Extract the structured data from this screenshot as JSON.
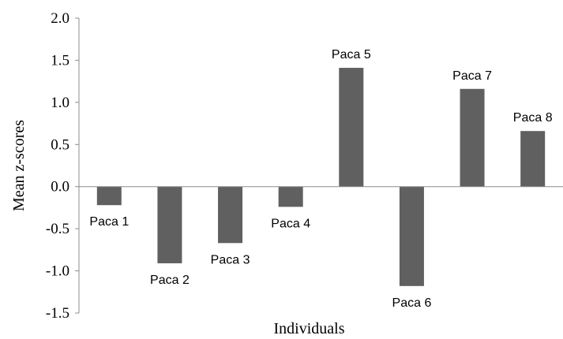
{
  "chart_data": {
    "type": "bar",
    "categories": [
      "Paca 1",
      "Paca 2",
      "Paca 3",
      "Paca 4",
      "Paca 5",
      "Paca 6",
      "Paca 7",
      "Paca 8"
    ],
    "values": [
      -0.22,
      -0.91,
      -0.67,
      -0.24,
      1.41,
      -1.18,
      1.16,
      0.66
    ],
    "xlabel": "Individuals",
    "ylabel": "Mean z-scores",
    "ylim": [
      -1.5,
      2.0
    ],
    "yticks": [
      "2.0",
      "1.5",
      "1.0",
      "0.5",
      "0.0",
      "-0.5",
      "-1.0",
      "-1.5"
    ],
    "bar_color": "#606060",
    "grid": false
  }
}
